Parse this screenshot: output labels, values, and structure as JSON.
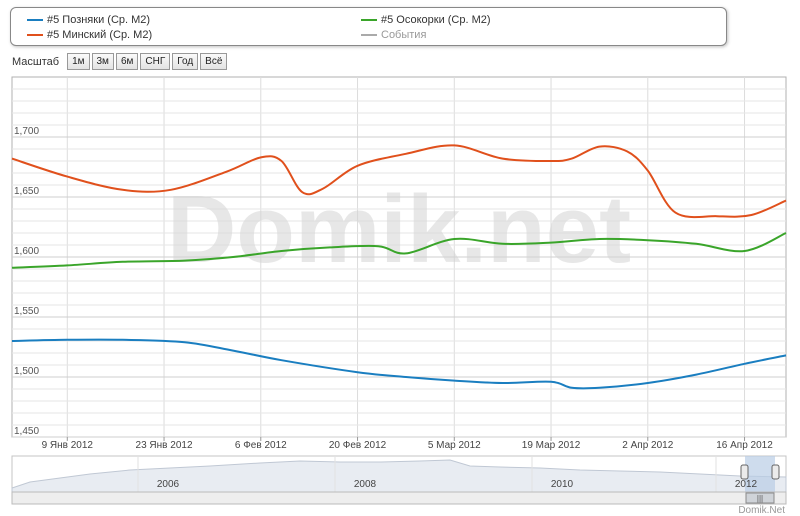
{
  "legend": {
    "items": [
      {
        "label": "#5 Позняки (Ср. М2)",
        "color": "#1a7ec0"
      },
      {
        "label": "#5 Минский (Ср. М2)",
        "color": "#e0501c"
      },
      {
        "label": "#5 Осокорки (Ср. М2)",
        "color": "#3aa52a"
      },
      {
        "label": "События",
        "color": "#aaaaaa"
      }
    ]
  },
  "zoom": {
    "label": "Масштаб",
    "buttons": [
      "1м",
      "3м",
      "6м",
      "СНГ",
      "Год",
      "Всё"
    ]
  },
  "watermark": "Domik.net",
  "credit": "Domik.Net",
  "navigator": {
    "year_labels": [
      "2006",
      "2008",
      "2010",
      "2012"
    ]
  },
  "chart_data": {
    "type": "line",
    "x_tick_labels": [
      "9 Янв 2012",
      "23 Янв 2012",
      "6 Фев 2012",
      "20 Фев 2012",
      "5 Мар 2012",
      "19 Мар 2012",
      "2 Апр 2012",
      "16 Апр 2012"
    ],
    "y_tick_labels": [
      "1,450",
      "1,500",
      "1,550",
      "1,600",
      "1,650",
      "1,700"
    ],
    "ylim": [
      1450,
      1750
    ],
    "xlim": [
      "2012-01-01",
      "2012-04-22"
    ],
    "grid": true,
    "legend_position": "top",
    "series": [
      {
        "name": "#5 Позняки (Ср. М2)",
        "color": "#1a7ec0",
        "points": [
          [
            "2012-01-01",
            1530
          ],
          [
            "2012-01-09",
            1531
          ],
          [
            "2012-01-17",
            1531
          ],
          [
            "2012-01-26",
            1529
          ],
          [
            "2012-02-02",
            1522
          ],
          [
            "2012-02-09",
            1514
          ],
          [
            "2012-02-20",
            1504
          ],
          [
            "2012-02-27",
            1500
          ],
          [
            "2012-03-05",
            1497
          ],
          [
            "2012-03-12",
            1495
          ],
          [
            "2012-03-19",
            1496
          ],
          [
            "2012-03-22",
            1491
          ],
          [
            "2012-03-26",
            1491
          ],
          [
            "2012-04-02",
            1495
          ],
          [
            "2012-04-09",
            1502
          ],
          [
            "2012-04-16",
            1511
          ],
          [
            "2012-04-22",
            1518
          ]
        ]
      },
      {
        "name": "#5 Минский (Ср. М2)",
        "color": "#e0501c",
        "points": [
          [
            "2012-01-01",
            1682
          ],
          [
            "2012-01-09",
            1667
          ],
          [
            "2012-01-17",
            1656
          ],
          [
            "2012-01-24",
            1656
          ],
          [
            "2012-02-01",
            1671
          ],
          [
            "2012-02-06",
            1683
          ],
          [
            "2012-02-09",
            1680
          ],
          [
            "2012-02-12",
            1654
          ],
          [
            "2012-02-15",
            1657
          ],
          [
            "2012-02-20",
            1676
          ],
          [
            "2012-02-27",
            1686
          ],
          [
            "2012-03-05",
            1693
          ],
          [
            "2012-03-12",
            1682
          ],
          [
            "2012-03-19",
            1680
          ],
          [
            "2012-03-22",
            1682
          ],
          [
            "2012-03-26",
            1692
          ],
          [
            "2012-03-30",
            1688
          ],
          [
            "2012-04-02",
            1672
          ],
          [
            "2012-04-06",
            1637
          ],
          [
            "2012-04-12",
            1634
          ],
          [
            "2012-04-17",
            1635
          ],
          [
            "2012-04-22",
            1647
          ]
        ]
      },
      {
        "name": "#5 Осокорки (Ср. М2)",
        "color": "#3aa52a",
        "points": [
          [
            "2012-01-01",
            1591
          ],
          [
            "2012-01-09",
            1593
          ],
          [
            "2012-01-17",
            1596
          ],
          [
            "2012-01-26",
            1597
          ],
          [
            "2012-02-02",
            1600
          ],
          [
            "2012-02-09",
            1605
          ],
          [
            "2012-02-16",
            1608
          ],
          [
            "2012-02-23",
            1609
          ],
          [
            "2012-02-27",
            1603
          ],
          [
            "2012-03-05",
            1615
          ],
          [
            "2012-03-12",
            1611
          ],
          [
            "2012-03-19",
            1612
          ],
          [
            "2012-03-26",
            1615
          ],
          [
            "2012-04-02",
            1614
          ],
          [
            "2012-04-09",
            1611
          ],
          [
            "2012-04-16",
            1605
          ],
          [
            "2012-04-22",
            1620
          ]
        ]
      }
    ]
  }
}
